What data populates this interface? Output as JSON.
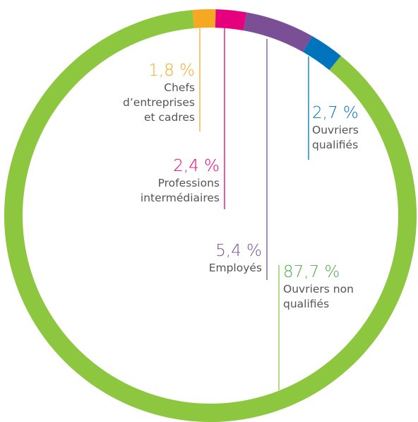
{
  "chart_data": {
    "type": "pie",
    "categories": [
      "Chefs d’entreprises et cadres",
      "Professions intermédiaires",
      "Employés",
      "Ouvriers qualifiés",
      "Ouvriers non qualifiés"
    ],
    "values": [
      1.8,
      2.4,
      5.4,
      2.7,
      87.7
    ],
    "value_labels": [
      "1,8 %",
      "2,4 %",
      "5,4 %",
      "2,7 %",
      "87,7 %"
    ],
    "colors": [
      "#f7a823",
      "#e6007e",
      "#7b4f96",
      "#0073bd",
      "#8dc63f"
    ]
  }
}
